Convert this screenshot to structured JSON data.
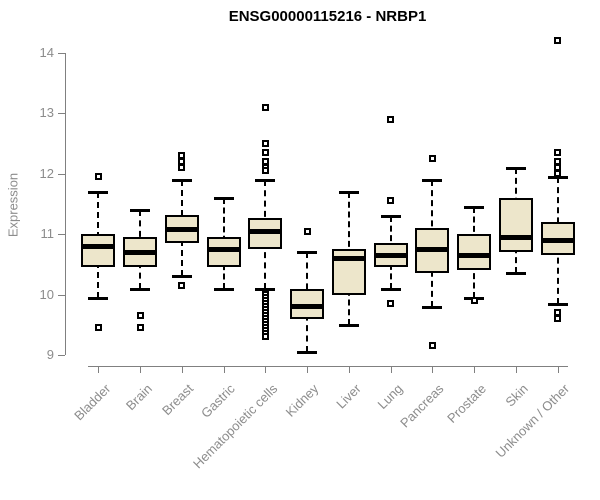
{
  "title": "ENSG00000115216 - NRBP1",
  "colors": {
    "box_fill": "#EDE6CB",
    "box_border": "#000000",
    "median": "#000000",
    "axis": "#808080",
    "tick_label": "#8C8C8C",
    "title": "#000000",
    "background": "#FFFFFF"
  },
  "chart_data": {
    "type": "boxplot",
    "title": "ENSG00000115216 - NRBP1",
    "xlabel": "",
    "ylabel": "Expression",
    "ylim": [
      9,
      14.2
    ],
    "yticks": [
      9,
      10,
      11,
      12,
      13,
      14
    ],
    "grid": false,
    "legend": "none",
    "categories": [
      "Bladder",
      "Brain",
      "Breast",
      "Gastric",
      "Hematopoietic cells",
      "Kidney",
      "Liver",
      "Lung",
      "Pancreas",
      "Prostate",
      "Skin",
      "Unknown / Other"
    ],
    "series": [
      {
        "name": "Bladder",
        "low": 9.95,
        "q1": 10.45,
        "median": 10.8,
        "q3": 11.0,
        "high": 11.7,
        "outliers": [
          11.95,
          9.45
        ]
      },
      {
        "name": "Brain",
        "low": 10.1,
        "q1": 10.45,
        "median": 10.7,
        "q3": 10.95,
        "high": 11.4,
        "outliers": [
          9.65,
          9.45
        ]
      },
      {
        "name": "Breast",
        "low": 10.3,
        "q1": 10.85,
        "median": 11.07,
        "q3": 11.32,
        "high": 11.9,
        "outliers": [
          12.3,
          12.2,
          12.1,
          10.15
        ]
      },
      {
        "name": "Gastric",
        "low": 10.1,
        "q1": 10.45,
        "median": 10.75,
        "q3": 10.95,
        "high": 11.6,
        "outliers": []
      },
      {
        "name": "Hematopoietic cells",
        "low": 10.1,
        "q1": 10.75,
        "median": 11.05,
        "q3": 11.27,
        "high": 11.9,
        "outliers": [
          13.1,
          12.5,
          12.35,
          12.2,
          12.1,
          12.05,
          10.0,
          9.95,
          9.9,
          9.85,
          9.8,
          9.75,
          9.7,
          9.65,
          9.6,
          9.55,
          9.5,
          9.45,
          9.4,
          9.35,
          9.3
        ]
      },
      {
        "name": "Kidney",
        "low": 9.05,
        "q1": 9.6,
        "median": 9.8,
        "q3": 10.1,
        "high": 10.7,
        "outliers": [
          11.05
        ]
      },
      {
        "name": "Liver",
        "low": 9.5,
        "q1": 10.0,
        "median": 10.6,
        "q3": 10.75,
        "high": 11.7,
        "outliers": []
      },
      {
        "name": "Lung",
        "low": 10.1,
        "q1": 10.45,
        "median": 10.65,
        "q3": 10.85,
        "high": 11.3,
        "outliers": [
          12.9,
          11.55,
          9.85
        ]
      },
      {
        "name": "Pancreas",
        "low": 9.8,
        "q1": 10.35,
        "median": 10.75,
        "q3": 11.1,
        "high": 11.9,
        "outliers": [
          12.25,
          9.15
        ]
      },
      {
        "name": "Prostate",
        "low": 9.95,
        "q1": 10.4,
        "median": 10.65,
        "q3": 11.0,
        "high": 11.45,
        "outliers": [
          9.9
        ]
      },
      {
        "name": "Skin",
        "low": 10.35,
        "q1": 10.7,
        "median": 10.95,
        "q3": 11.6,
        "high": 12.1,
        "outliers": []
      },
      {
        "name": "Unknown / Other",
        "low": 9.85,
        "q1": 10.65,
        "median": 10.9,
        "q3": 11.2,
        "high": 11.95,
        "outliers": [
          14.2,
          12.35,
          12.2,
          12.1,
          12.0,
          9.7,
          9.6
        ]
      }
    ]
  }
}
